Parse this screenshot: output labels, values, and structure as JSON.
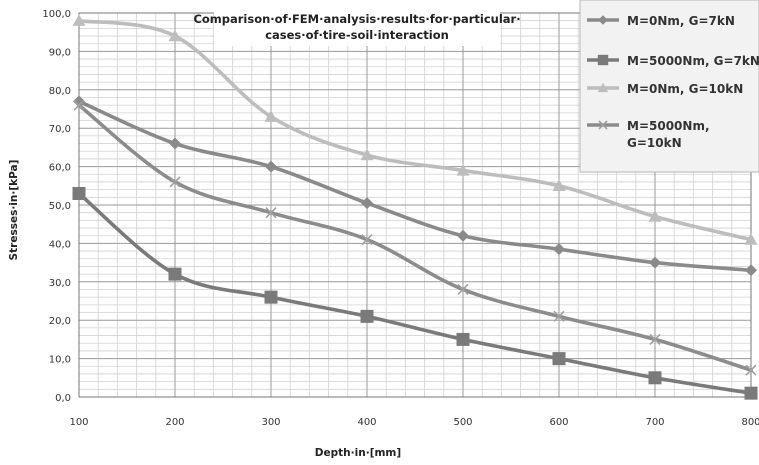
{
  "chart_data": {
    "type": "line",
    "title": "Comparison·of·FEM·analysis·results·for·particular·cases·of·tire-soil·interaction",
    "title_lines": [
      "Comparison·of·FEM·analysis·results·for·particular·",
      "cases·of·tire-soil·interaction"
    ],
    "xlabel": "Depth·in·[mm]",
    "ylabel": "Stresses·in·[kPa]",
    "x": [
      100,
      200,
      300,
      400,
      500,
      600,
      700,
      800
    ],
    "x_tick_labels": [
      "100",
      "200",
      "300",
      "400",
      "500",
      "600",
      "700",
      "800"
    ],
    "y_tick_labels": [
      "0,0",
      "10,0",
      "20,0",
      "30,0",
      "40,0",
      "50,0",
      "60,0",
      "70,0",
      "80,0",
      "90,0",
      "100,0"
    ],
    "xlim": [
      100,
      800
    ],
    "ylim": [
      0,
      100
    ],
    "grid": true,
    "legend_position": "top-right",
    "series": [
      {
        "name": "M=0Nm, G=7kN",
        "marker": "diamond",
        "color": "#8a8a8a",
        "values": [
          77,
          66,
          60,
          50.5,
          42,
          38.5,
          35,
          33
        ]
      },
      {
        "name": "M=5000Nm, G=7kN",
        "marker": "square",
        "color": "#7a7a7a",
        "values": [
          53,
          32,
          26,
          21,
          15,
          10,
          5,
          1
        ]
      },
      {
        "name": "M=0Nm, G=10kN",
        "marker": "triangle",
        "color": "#bdbdbd",
        "values": [
          98,
          94,
          73,
          63,
          59,
          55,
          47,
          41
        ]
      },
      {
        "name": "M=5000Nm, G=10kN",
        "legend_lines": [
          "M=5000Nm,",
          "G=10kN"
        ],
        "marker": "x",
        "color": "#8c8c8c",
        "values": [
          76,
          56,
          48,
          41,
          28,
          21,
          15,
          7
        ]
      }
    ]
  }
}
